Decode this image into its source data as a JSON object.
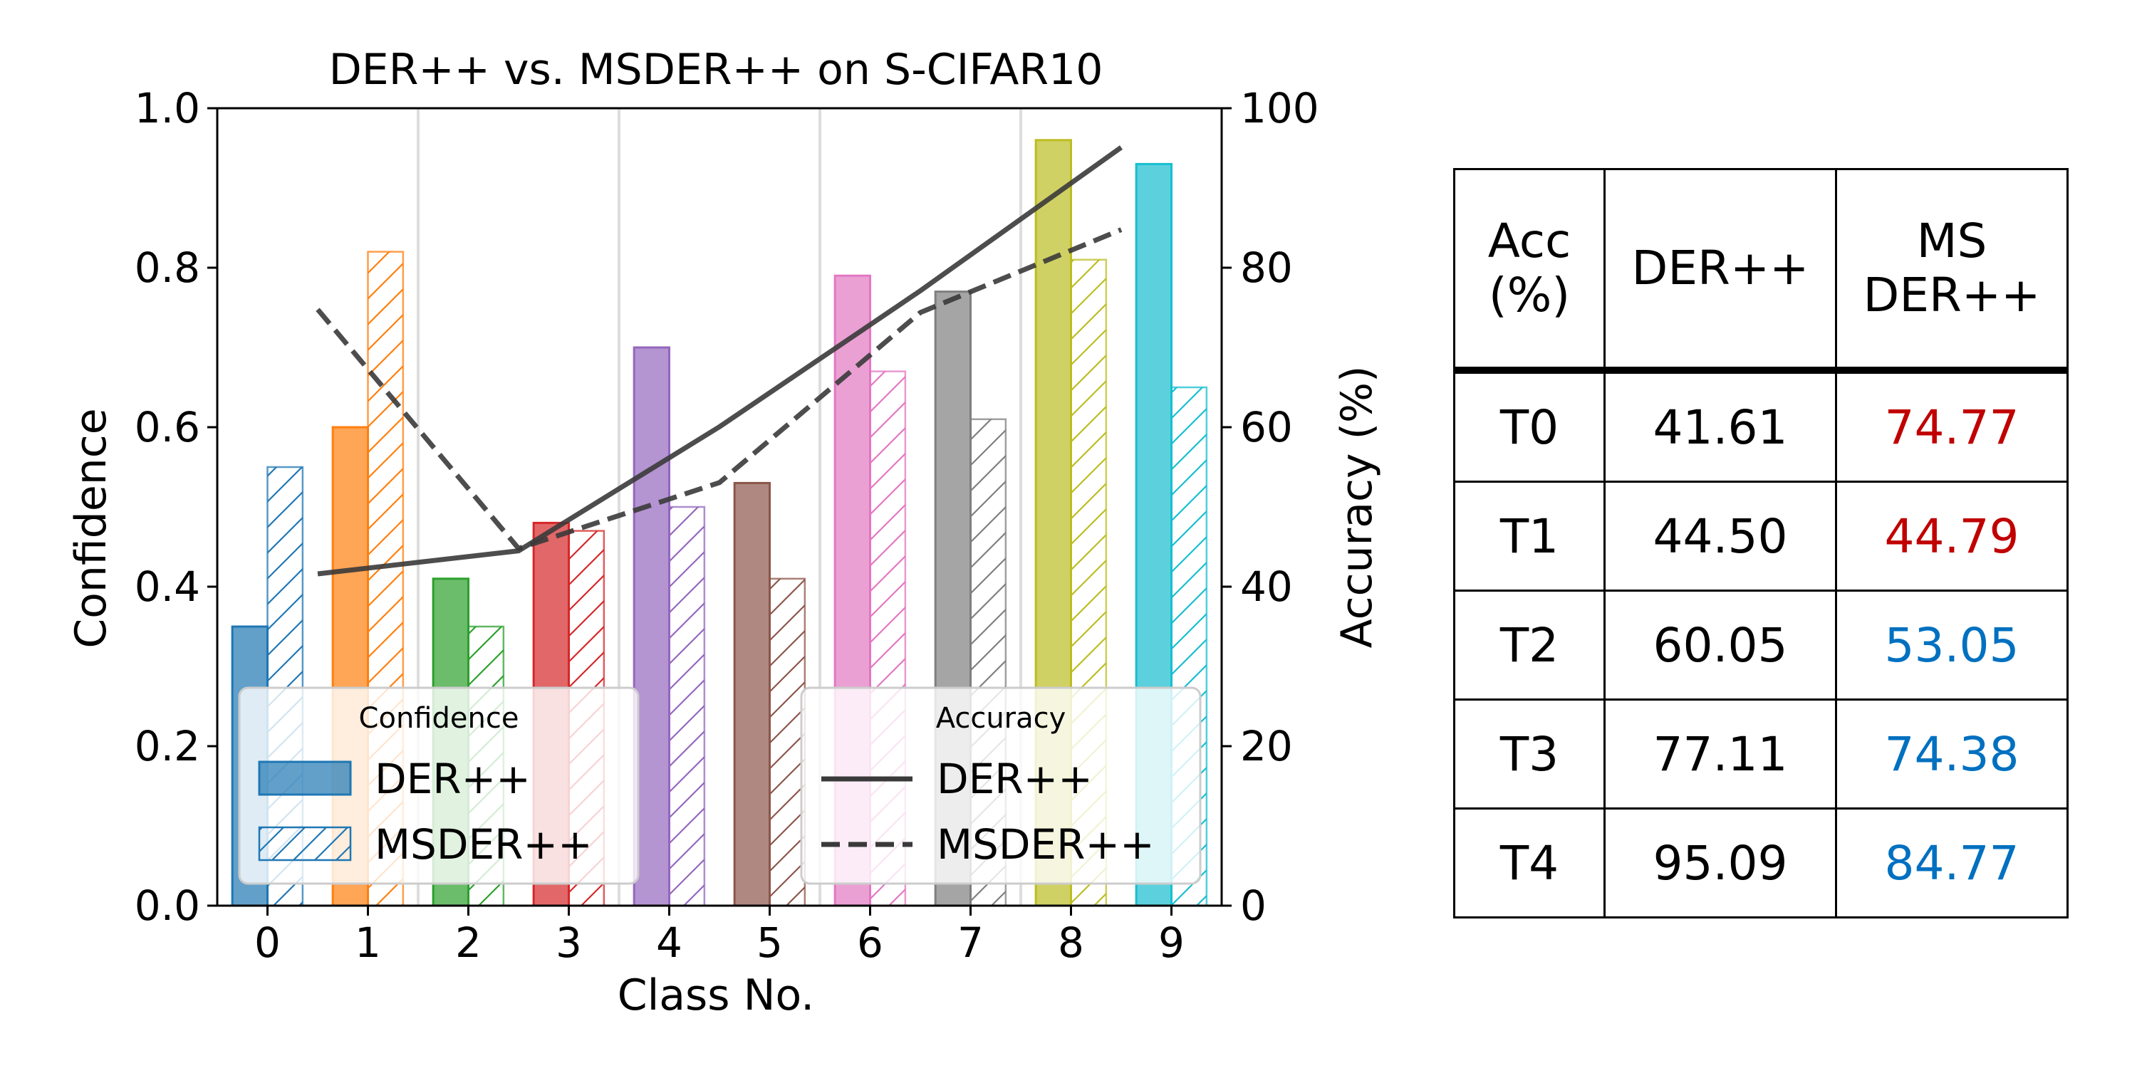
{
  "chart_data": {
    "type": "bar",
    "title": "DER++ vs. MSDER++ on S-CIFAR10",
    "xlabel": "Class No.",
    "ylabel": "Confidence",
    "ylabel_right": "Accuracy (%)",
    "categories": [
      "0",
      "1",
      "2",
      "3",
      "4",
      "5",
      "6",
      "7",
      "8",
      "9"
    ],
    "ylim": [
      0,
      1.0
    ],
    "yticks": [
      "0.0",
      "0.2",
      "0.4",
      "0.6",
      "0.8",
      "1.0"
    ],
    "ylim_right": [
      0,
      100
    ],
    "yticks_right": [
      "0",
      "20",
      "40",
      "60",
      "80",
      "100"
    ],
    "bar_colors": [
      "#1f77b4",
      "#ff7f0e",
      "#2ca02c",
      "#d62728",
      "#9467bd",
      "#8c564b",
      "#e377c2",
      "#7f7f7f",
      "#bcbd22",
      "#17becf"
    ],
    "series": [
      {
        "name": "DER++",
        "kind": "bar",
        "style": "solid",
        "values": [
          0.35,
          0.6,
          0.41,
          0.48,
          0.7,
          0.53,
          0.79,
          0.77,
          0.96,
          0.93
        ]
      },
      {
        "name": "MSDER++",
        "kind": "bar",
        "style": "hatched",
        "values": [
          0.55,
          0.82,
          0.35,
          0.47,
          0.5,
          0.41,
          0.67,
          0.61,
          0.81,
          0.65
        ]
      }
    ],
    "accuracy_series": [
      {
        "name": "DER++",
        "style": "solid",
        "x": [
          0.5,
          2.5,
          4.5,
          6.5,
          8.5
        ],
        "values": [
          41.61,
          44.5,
          60.05,
          77.11,
          95.09
        ]
      },
      {
        "name": "MSDER++",
        "style": "dashed",
        "x": [
          0.5,
          2.5,
          4.5,
          6.5,
          8.5
        ],
        "values": [
          74.77,
          44.79,
          53.05,
          74.38,
          84.77
        ]
      }
    ],
    "task_boundaries": [
      1.5,
      3.5,
      5.5,
      7.5
    ],
    "legend_confidence": {
      "title": "Confidence",
      "items": [
        "DER++",
        "MSDER++"
      ],
      "location": "lower-left"
    },
    "legend_accuracy": {
      "title": "Accuracy",
      "items": [
        "DER++",
        "MSDER++"
      ],
      "location": "lower-center"
    }
  },
  "table": {
    "header": {
      "acc_line1": "Acc",
      "acc_line2": "(%)",
      "der": "DER++",
      "ms_line1": "MS",
      "ms_line2": "DER++"
    },
    "rows": [
      {
        "task": "T0",
        "der": "41.61",
        "ms": "74.77",
        "ms_color": "#c00000"
      },
      {
        "task": "T1",
        "der": "44.50",
        "ms": "44.79",
        "ms_color": "#c00000"
      },
      {
        "task": "T2",
        "der": "60.05",
        "ms": "53.05",
        "ms_color": "#0070c0"
      },
      {
        "task": "T3",
        "der": "77.11",
        "ms": "74.38",
        "ms_color": "#0070c0"
      },
      {
        "task": "T4",
        "der": "95.09",
        "ms": "84.77",
        "ms_color": "#0070c0"
      }
    ]
  }
}
